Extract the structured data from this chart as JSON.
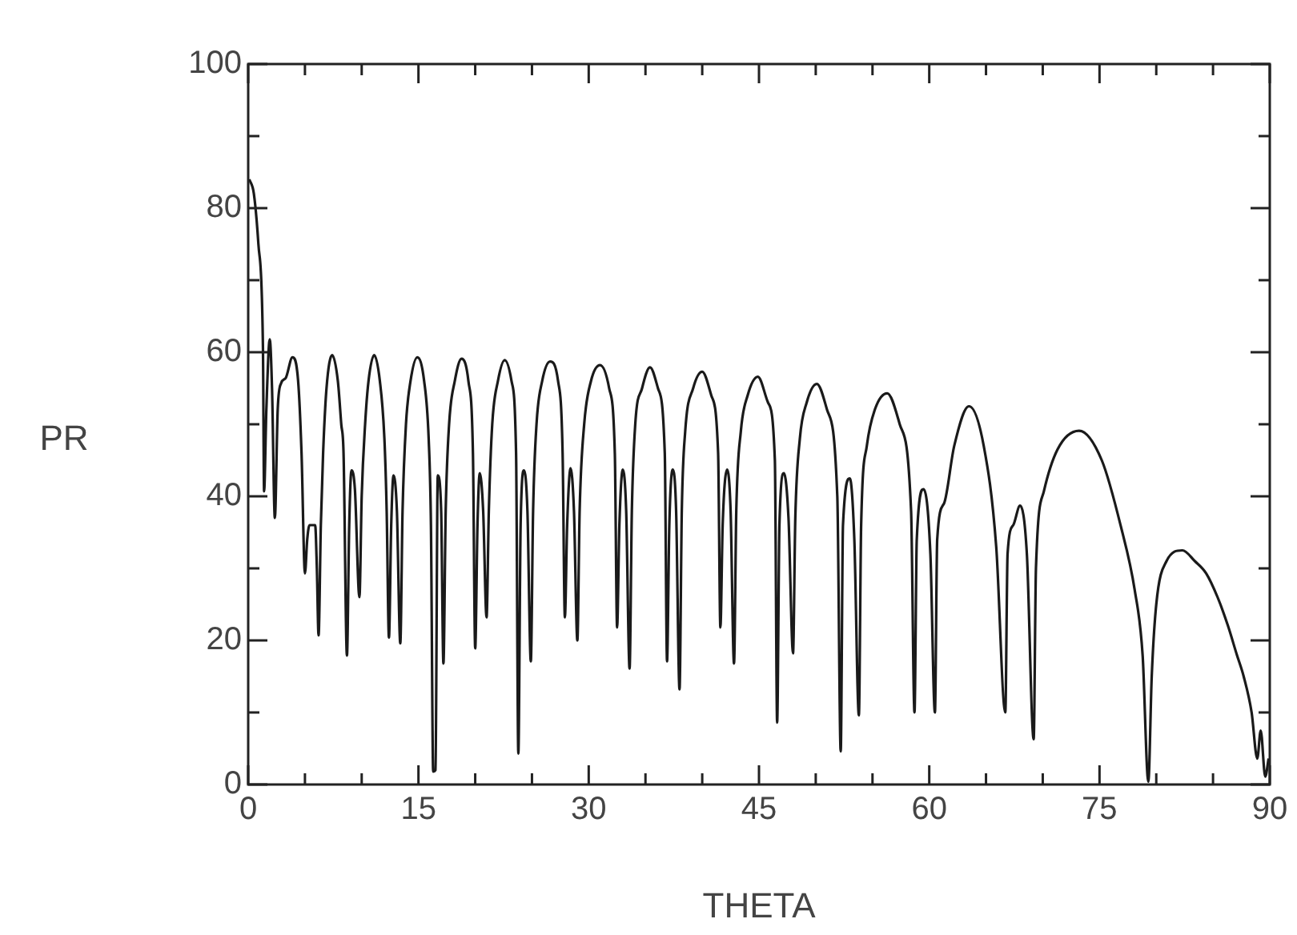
{
  "chart_data": {
    "type": "line",
    "xlabel": "THETA",
    "ylabel": "PR",
    "xlim": [
      0,
      90
    ],
    "ylim": [
      0,
      100
    ],
    "xticks": [
      0,
      {
        "value": 5,
        "label": null
      },
      {
        "value": 10,
        "label": null
      },
      15,
      {
        "value": 20,
        "label": null
      },
      {
        "value": 25,
        "label": null
      },
      30,
      {
        "value": 35,
        "label": null
      },
      {
        "value": 40,
        "label": null
      },
      45,
      {
        "value": 50,
        "label": null
      },
      {
        "value": 55,
        "label": null
      },
      60,
      {
        "value": 65,
        "label": null
      },
      {
        "value": 70,
        "label": null
      },
      75,
      {
        "value": 80,
        "label": null
      },
      {
        "value": 85,
        "label": null
      },
      90
    ],
    "yticks": [
      0,
      {
        "value": 10,
        "label": null
      },
      20,
      {
        "value": 30,
        "label": null
      },
      40,
      {
        "value": 50,
        "label": null
      },
      60,
      {
        "value": 70,
        "label": null
      },
      80,
      {
        "value": 90,
        "label": null
      },
      100
    ],
    "grid": false,
    "legend": false,
    "marker": "none",
    "line_style": "solid",
    "series": [
      {
        "color": "#1a1a1a",
        "x": [
          0.1,
          0.5,
          0.9,
          1.3,
          1.4,
          1.6,
          1.9,
          2.1,
          2.35,
          2.6,
          2.9,
          3.3,
          3.9,
          4.4,
          4.7,
          5.0,
          5.2,
          5.4,
          5.9,
          6.05,
          6.2,
          6.4,
          6.6,
          6.9,
          7.4,
          7.9,
          8.2,
          8.4,
          8.7,
          8.9,
          9.1,
          9.4,
          9.8,
          10.0,
          10.3,
          10.6,
          11.1,
          11.6,
          12.0,
          12.2,
          12.4,
          12.6,
          12.8,
          13.1,
          13.4,
          13.6,
          13.9,
          14.3,
          14.9,
          15.5,
          15.9,
          16.1,
          16.3,
          16.5,
          16.7,
          17.0,
          17.2,
          17.4,
          17.7,
          18.2,
          18.8,
          19.4,
          19.8,
          20.0,
          20.2,
          20.4,
          20.7,
          21.0,
          21.2,
          21.5,
          22.0,
          22.6,
          23.2,
          23.6,
          23.8,
          24.0,
          24.3,
          24.6,
          24.9,
          25.1,
          25.4,
          25.9,
          26.6,
          27.3,
          27.7,
          27.9,
          28.1,
          28.4,
          28.7,
          29.0,
          29.2,
          29.6,
          30.2,
          31.0,
          31.8,
          32.3,
          32.5,
          32.7,
          33.0,
          33.3,
          33.6,
          33.8,
          34.1,
          34.7,
          35.4,
          36.1,
          36.7,
          36.9,
          37.1,
          37.4,
          37.7,
          38.0,
          38.2,
          38.5,
          39.2,
          40.0,
          40.8,
          41.4,
          41.6,
          41.8,
          42.2,
          42.5,
          42.8,
          43.0,
          43.4,
          44.0,
          44.9,
          45.8,
          46.4,
          46.6,
          46.8,
          47.2,
          47.6,
          48.0,
          48.2,
          48.6,
          49.2,
          50.1,
          51.0,
          51.9,
          52.2,
          52.4,
          53.0,
          53.4,
          53.8,
          54.0,
          54.5,
          55.2,
          56.3,
          57.4,
          58.4,
          58.7,
          58.9,
          59.5,
          60.1,
          60.5,
          60.7,
          61.3,
          62.2,
          63.5,
          64.8,
          65.9,
          66.7,
          66.9,
          67.4,
          68.0,
          68.6,
          69.2,
          69.4,
          70.1,
          71.3,
          73.2,
          75.2,
          76.9,
          78.1,
          78.8,
          79.3,
          79.6,
          80.0,
          80.9,
          82.3,
          83.4,
          84.4,
          85.4,
          86.3,
          87.1,
          87.7,
          88.4,
          88.9,
          89.2,
          89.6,
          89.9
        ],
        "values": [
          84,
          82,
          75,
          60.7,
          40.7,
          52,
          61.8,
          55,
          37,
          52,
          55.7,
          56.4,
          59.3,
          56,
          46,
          29.3,
          34,
          36,
          36,
          30,
          20.7,
          36,
          46,
          55,
          59.6,
          56,
          50,
          46,
          17.9,
          36,
          43.6,
          41,
          26,
          40,
          50,
          56,
          59.6,
          56,
          48,
          38,
          20.4,
          36,
          42.9,
          38,
          19.6,
          38,
          50,
          56,
          59.3,
          56,
          48,
          36,
          1.8,
          2,
          42.9,
          38,
          16.8,
          38,
          50,
          56,
          59.1,
          56,
          46,
          18.9,
          36,
          43.2,
          38,
          23.2,
          38,
          50,
          56,
          58.9,
          56,
          46,
          4.3,
          36,
          43.6,
          38,
          17.1,
          38,
          50,
          56,
          58.7,
          56,
          46,
          23.2,
          36,
          43.9,
          38,
          20,
          38,
          50,
          56,
          58.2,
          55,
          46,
          21.8,
          36,
          43.7,
          38,
          16.1,
          38,
          50,
          55,
          57.9,
          55,
          46,
          17.1,
          36,
          43.7,
          38,
          13.2,
          38,
          49,
          55,
          57.3,
          54,
          46,
          21.8,
          36,
          43.7,
          38,
          16.8,
          38,
          49,
          54,
          56.6,
          53,
          45,
          8.6,
          36,
          43.2,
          37,
          18.2,
          37,
          48,
          53,
          55.6,
          52,
          40,
          4.6,
          36,
          42.5,
          34,
          9.6,
          36,
          47,
          52,
          54.3,
          50,
          38,
          10,
          34,
          41,
          32,
          10,
          34,
          39,
          47,
          52.5,
          47,
          33,
          10,
          32,
          36,
          38.7,
          32,
          6.3,
          30,
          40.7,
          46.5,
          49.1,
          45,
          35.7,
          27,
          17.9,
          0.4,
          15,
          25,
          31,
          32.5,
          31,
          29.3,
          26,
          22.1,
          18,
          15,
          10,
          3.6,
          7.5,
          1.1,
          3.6
        ]
      }
    ]
  }
}
